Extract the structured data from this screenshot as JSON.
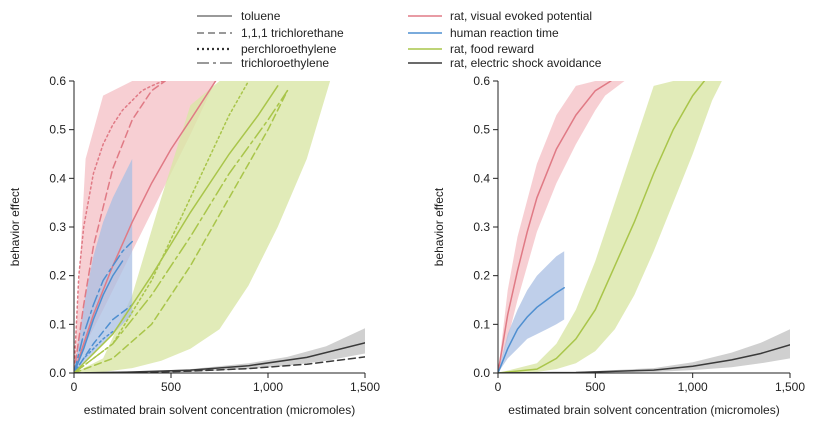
{
  "legend": {
    "solvents": [
      {
        "label": "toluene",
        "dash": "solid"
      },
      {
        "label": "1,1,1 trichlorethane",
        "dash": "dashed"
      },
      {
        "label": "perchloroethylene",
        "dash": "dotted"
      },
      {
        "label": "trichloroethylene",
        "dash": "longdash"
      }
    ],
    "endpoints": [
      {
        "label": "rat, visual evoked potential",
        "color": "#e07a85"
      },
      {
        "label": "human reaction time",
        "color": "#4f8fd0"
      },
      {
        "label": "rat, food reward",
        "color": "#a9c54a"
      },
      {
        "label": "rat, electric shock avoidance",
        "color": "#3a3a3a"
      }
    ]
  },
  "colors": {
    "visual": "#e07a85",
    "visual_band": "#f5c3c8",
    "human": "#4f8fd0",
    "human_band": "#a9bfe3",
    "food": "#a9c54a",
    "food_band": "#d9e6a6",
    "shock": "#3a3a3a",
    "shock_band": "#c4c4c4"
  },
  "chart_data": [
    {
      "type": "line",
      "panel": "left",
      "xlabel": "estimated brain solvent concentration (micromoles)",
      "ylabel": "behavior effect",
      "xlim": [
        0,
        1500
      ],
      "ylim": [
        0,
        0.6
      ],
      "xticks": [
        0,
        500,
        1000,
        1500
      ],
      "xtick_labels": [
        "0",
        "500",
        "1,000",
        "1,500"
      ],
      "yticks": [
        0.0,
        0.1,
        0.2,
        0.3,
        0.4,
        0.5,
        0.6
      ],
      "ytick_labels": [
        "0.0",
        "0.1",
        "0.2",
        "0.3",
        "0.4",
        "0.5",
        "0.6"
      ],
      "bands": [
        {
          "endpoint": "rat, visual evoked potential",
          "color_key": "visual_band",
          "x": [
            0,
            60,
            150,
            300,
            450,
            600,
            730
          ],
          "lower": [
            0,
            0.06,
            0.13,
            0.25,
            0.37,
            0.49,
            0.6
          ],
          "upper": [
            0,
            0.44,
            0.57,
            0.6,
            0.6,
            0.6,
            0.6
          ]
        },
        {
          "endpoint": "rat, food reward",
          "color_key": "food_band",
          "x": [
            0,
            150,
            300,
            450,
            600,
            750,
            900,
            1050,
            1200,
            1320
          ],
          "lower": [
            0,
            0.002,
            0.01,
            0.025,
            0.05,
            0.09,
            0.18,
            0.3,
            0.44,
            0.6
          ],
          "upper": [
            0,
            0.03,
            0.16,
            0.36,
            0.55,
            0.6,
            0.6,
            0.6,
            0.6,
            0.6
          ]
        },
        {
          "endpoint": "human reaction time",
          "color_key": "human_band",
          "x": [
            0,
            50,
            100,
            150,
            200,
            250,
            300
          ],
          "lower": [
            0,
            0.02,
            0.04,
            0.06,
            0.08,
            0.1,
            0.12
          ],
          "upper": [
            0,
            0.14,
            0.24,
            0.31,
            0.36,
            0.4,
            0.44
          ]
        },
        {
          "endpoint": "rat, electric shock avoidance",
          "color_key": "shock_band",
          "x": [
            0,
            300,
            600,
            900,
            1100,
            1300,
            1500
          ],
          "lower": [
            0,
            0,
            0.002,
            0.008,
            0.015,
            0.025,
            0.04
          ],
          "upper": [
            0,
            0.002,
            0.008,
            0.02,
            0.033,
            0.055,
            0.092
          ]
        }
      ],
      "series": [
        {
          "endpoint": "rat, visual evoked potential",
          "solvent": "toluene",
          "color_key": "visual",
          "dash": "solid",
          "x": [
            0,
            100,
            200,
            300,
            400,
            500,
            600,
            730
          ],
          "y": [
            0,
            0.12,
            0.22,
            0.31,
            0.39,
            0.46,
            0.52,
            0.6
          ]
        },
        {
          "endpoint": "rat, visual evoked potential",
          "solvent": "1,1,1 trichlorethane",
          "color_key": "visual",
          "dash": "dashed",
          "x": [
            0,
            50,
            100,
            150,
            200,
            250,
            300,
            350,
            400,
            470
          ],
          "y": [
            0,
            0.14,
            0.26,
            0.34,
            0.42,
            0.47,
            0.52,
            0.55,
            0.58,
            0.6
          ]
        },
        {
          "endpoint": "rat, visual evoked potential",
          "solvent": "perchloroethylene",
          "color_key": "visual",
          "dash": "dotted",
          "x": [
            0,
            25,
            50,
            100,
            150,
            200,
            250,
            300,
            350,
            400,
            460
          ],
          "y": [
            0,
            0.2,
            0.3,
            0.41,
            0.47,
            0.51,
            0.54,
            0.56,
            0.58,
            0.59,
            0.6
          ]
        },
        {
          "endpoint": "human reaction time",
          "solvent": "toluene",
          "color_key": "human",
          "dash": "solid",
          "x": [
            0,
            50,
            100,
            150,
            200,
            250
          ],
          "y": [
            0,
            0.05,
            0.11,
            0.16,
            0.2,
            0.23
          ]
        },
        {
          "endpoint": "human reaction time",
          "solvent": "1,1,1 trichlorethane",
          "color_key": "human",
          "dash": "dashed",
          "x": [
            0,
            100,
            200,
            300
          ],
          "y": [
            0,
            0.06,
            0.11,
            0.14
          ]
        },
        {
          "endpoint": "human reaction time",
          "solvent": "perchloroethylene",
          "color_key": "human",
          "dash": "dotted",
          "x": [
            0,
            50,
            100,
            150,
            200
          ],
          "y": [
            0,
            0.03,
            0.05,
            0.07,
            0.085
          ]
        },
        {
          "endpoint": "human reaction time",
          "solvent": "trichloroethylene",
          "color_key": "human",
          "dash": "longdash",
          "x": [
            0,
            50,
            100,
            150,
            200,
            250,
            300
          ],
          "y": [
            0,
            0.08,
            0.14,
            0.19,
            0.22,
            0.25,
            0.27
          ]
        },
        {
          "endpoint": "rat, food reward",
          "solvent": "toluene",
          "color_key": "food",
          "dash": "solid",
          "x": [
            0,
            200,
            400,
            600,
            800,
            950,
            1050
          ],
          "y": [
            0,
            0.08,
            0.2,
            0.33,
            0.45,
            0.53,
            0.59
          ]
        },
        {
          "endpoint": "rat, food reward",
          "solvent": "1,1,1 trichlorethane",
          "color_key": "food",
          "dash": "dashed",
          "x": [
            0,
            200,
            400,
            600,
            800,
            1000,
            1100
          ],
          "y": [
            0,
            0.03,
            0.1,
            0.22,
            0.36,
            0.5,
            0.58
          ]
        },
        {
          "endpoint": "rat, food reward",
          "solvent": "perchloroethylene",
          "color_key": "food",
          "dash": "dotted",
          "x": [
            0,
            200,
            400,
            600,
            800,
            900
          ],
          "y": [
            0,
            0.06,
            0.19,
            0.36,
            0.53,
            0.6
          ]
        },
        {
          "endpoint": "rat, food reward",
          "solvent": "trichloroethylene",
          "color_key": "food",
          "dash": "longdash",
          "x": [
            0,
            200,
            400,
            600,
            800,
            1000,
            1100
          ],
          "y": [
            0,
            0.06,
            0.16,
            0.28,
            0.41,
            0.52,
            0.58
          ]
        },
        {
          "endpoint": "rat, electric shock avoidance",
          "solvent": "toluene",
          "color_key": "shock",
          "dash": "solid",
          "x": [
            0,
            300,
            600,
            900,
            1200,
            1500
          ],
          "y": [
            0,
            0.002,
            0.006,
            0.015,
            0.032,
            0.062
          ]
        },
        {
          "endpoint": "rat, electric shock avoidance",
          "solvent": "1,1,1 trichlorethane",
          "color_key": "shock",
          "dash": "dashed",
          "x": [
            0,
            300,
            600,
            900,
            1200,
            1500
          ],
          "y": [
            0,
            0.001,
            0.004,
            0.009,
            0.018,
            0.033
          ]
        }
      ]
    },
    {
      "type": "line",
      "panel": "right",
      "xlabel": "estimated brain solvent concentration (micromoles)",
      "ylabel": "behavior effect",
      "xlim": [
        0,
        1500
      ],
      "ylim": [
        0,
        0.6
      ],
      "xticks": [
        0,
        500,
        1000,
        1500
      ],
      "xtick_labels": [
        "0",
        "500",
        "1,000",
        "1,500"
      ],
      "yticks": [
        0.0,
        0.1,
        0.2,
        0.3,
        0.4,
        0.5,
        0.6
      ],
      "ytick_labels": [
        "0.0",
        "0.1",
        "0.2",
        "0.3",
        "0.4",
        "0.5",
        "0.6"
      ],
      "bands": [
        {
          "endpoint": "rat, visual evoked potential",
          "color_key": "visual_band",
          "x": [
            0,
            50,
            100,
            200,
            300,
            400,
            500,
            550,
            650
          ],
          "lower": [
            0,
            0.07,
            0.15,
            0.29,
            0.39,
            0.47,
            0.54,
            0.57,
            0.6
          ],
          "upper": [
            0,
            0.17,
            0.28,
            0.43,
            0.53,
            0.59,
            0.6,
            0.6,
            0.6
          ]
        },
        {
          "endpoint": "rat, food reward",
          "color_key": "food_band",
          "x": [
            0,
            200,
            300,
            400,
            500,
            600,
            700,
            800,
            900,
            1000,
            1100,
            1150
          ],
          "lower": [
            0,
            0.002,
            0.008,
            0.02,
            0.045,
            0.09,
            0.16,
            0.25,
            0.35,
            0.45,
            0.56,
            0.6
          ],
          "upper": [
            0,
            0.02,
            0.06,
            0.13,
            0.23,
            0.35,
            0.47,
            0.59,
            0.6,
            0.6,
            0.6,
            0.6
          ]
        },
        {
          "endpoint": "human reaction time",
          "color_key": "human_band",
          "x": [
            0,
            50,
            100,
            150,
            200,
            250,
            300,
            340
          ],
          "lower": [
            0,
            0.03,
            0.05,
            0.07,
            0.08,
            0.09,
            0.1,
            0.11
          ],
          "upper": [
            0,
            0.08,
            0.13,
            0.17,
            0.2,
            0.22,
            0.24,
            0.25
          ]
        },
        {
          "endpoint": "rat, electric shock avoidance",
          "color_key": "shock_band",
          "x": [
            0,
            400,
            800,
            1000,
            1200,
            1350,
            1500
          ],
          "lower": [
            0,
            0,
            0.002,
            0.006,
            0.012,
            0.02,
            0.03
          ],
          "upper": [
            0,
            0.002,
            0.01,
            0.022,
            0.042,
            0.062,
            0.09
          ]
        }
      ],
      "series": [
        {
          "endpoint": "rat, visual evoked potential",
          "color_key": "visual",
          "dash": "solid",
          "x": [
            0,
            50,
            100,
            150,
            200,
            300,
            400,
            500,
            580
          ],
          "y": [
            0,
            0.12,
            0.21,
            0.29,
            0.36,
            0.46,
            0.53,
            0.58,
            0.6
          ]
        },
        {
          "endpoint": "human reaction time",
          "color_key": "human",
          "dash": "solid",
          "x": [
            0,
            50,
            100,
            150,
            200,
            250,
            300,
            340
          ],
          "y": [
            0,
            0.05,
            0.09,
            0.115,
            0.135,
            0.15,
            0.165,
            0.175
          ]
        },
        {
          "endpoint": "rat, food reward",
          "color_key": "food",
          "dash": "solid",
          "x": [
            0,
            200,
            300,
            400,
            500,
            600,
            700,
            800,
            900,
            1000,
            1060
          ],
          "y": [
            0,
            0.008,
            0.03,
            0.07,
            0.13,
            0.22,
            0.31,
            0.41,
            0.5,
            0.57,
            0.6
          ]
        },
        {
          "endpoint": "rat, electric shock avoidance",
          "color_key": "shock",
          "dash": "solid",
          "x": [
            0,
            400,
            800,
            1000,
            1200,
            1350,
            1500
          ],
          "y": [
            0,
            0.001,
            0.006,
            0.014,
            0.027,
            0.04,
            0.058
          ]
        }
      ]
    }
  ]
}
